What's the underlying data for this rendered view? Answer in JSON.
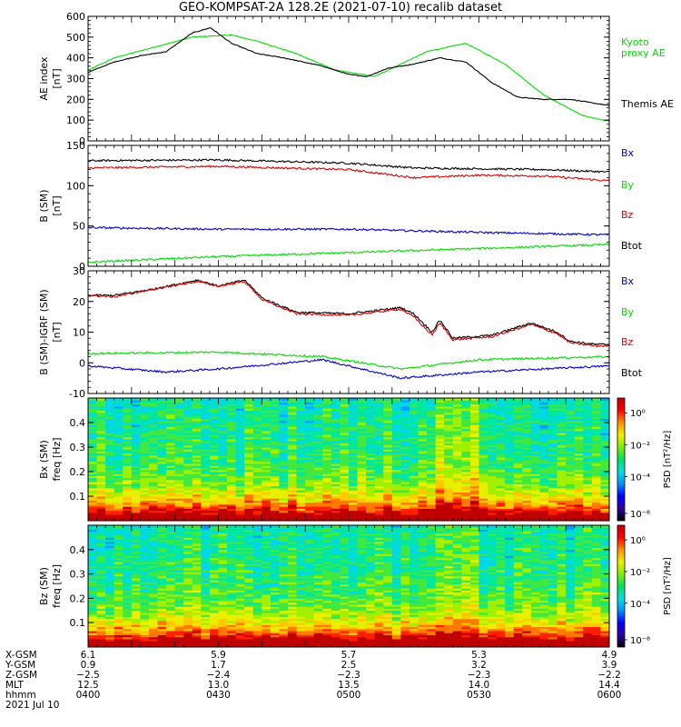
{
  "title": "GEO-KOMPSAT-2A 128.2E (2021-07-10) recalib dataset",
  "colors": {
    "black": "#000000",
    "red": "#dd0000",
    "green": "#00dd00",
    "blue": "#0000cc"
  },
  "chart_data": [
    {
      "type": "line",
      "name": "ae-index",
      "ylabel": [
        "AE index",
        "[nT]"
      ],
      "ylim": [
        0,
        600
      ],
      "yticks": [
        0,
        100,
        200,
        300,
        400,
        500,
        600
      ],
      "xlim": [
        4.0,
        6.0
      ],
      "legend": [
        {
          "text": "Kyoto",
          "color": "green"
        },
        {
          "text": "proxy AE",
          "color": "green"
        },
        {
          "text": "Themis AE",
          "color": "black"
        }
      ],
      "series": [
        {
          "color": "green",
          "x": [
            4.0,
            4.1,
            4.25,
            4.4,
            4.55,
            4.65,
            4.8,
            4.95,
            5.1,
            5.3,
            5.45,
            5.6,
            5.75,
            5.9,
            6.0
          ],
          "y": [
            340,
            400,
            450,
            500,
            510,
            480,
            420,
            340,
            310,
            430,
            470,
            370,
            220,
            120,
            95
          ]
        },
        {
          "color": "black",
          "x": [
            4.0,
            4.1,
            4.2,
            4.3,
            4.4,
            4.47,
            4.55,
            4.65,
            4.75,
            4.9,
            5.0,
            5.07,
            5.15,
            5.25,
            5.35,
            5.45,
            5.55,
            5.65,
            5.75,
            5.85,
            6.0
          ],
          "y": [
            330,
            380,
            410,
            430,
            520,
            545,
            470,
            420,
            400,
            360,
            320,
            310,
            350,
            370,
            400,
            380,
            280,
            210,
            200,
            200,
            170
          ]
        }
      ]
    },
    {
      "type": "line",
      "name": "b-sm",
      "ylabel": [
        "B  (SM)",
        "[nT]"
      ],
      "ylim": [
        0,
        150
      ],
      "yticks": [
        0,
        50,
        100,
        150
      ],
      "xlim": [
        4.0,
        6.0
      ],
      "legend": [
        {
          "text": "Bx",
          "color": "blue"
        },
        {
          "text": "By",
          "color": "green"
        },
        {
          "text": "Bz",
          "color": "red"
        },
        {
          "text": "Btot",
          "color": "black"
        }
      ],
      "series": [
        {
          "color": "black",
          "x": [
            4.0,
            4.5,
            5.0,
            5.25,
            5.5,
            5.75,
            6.0
          ],
          "y": [
            131,
            132,
            128,
            122,
            121,
            120,
            117
          ]
        },
        {
          "color": "red",
          "x": [
            4.0,
            4.5,
            5.0,
            5.25,
            5.5,
            5.75,
            6.0
          ],
          "y": [
            122,
            124,
            120,
            110,
            113,
            112,
            106
          ]
        },
        {
          "color": "blue",
          "x": [
            4.0,
            4.5,
            5.0,
            5.5,
            6.0
          ],
          "y": [
            48,
            46,
            46,
            42,
            39
          ]
        },
        {
          "color": "green",
          "x": [
            4.0,
            4.5,
            5.0,
            5.5,
            6.0
          ],
          "y": [
            5,
            12,
            17,
            22,
            27
          ]
        }
      ]
    },
    {
      "type": "line",
      "name": "b-minus-igrf",
      "ylabel": [
        "B (SM)-IGRF (SM)",
        "[nT]"
      ],
      "ylim": [
        -10,
        30
      ],
      "yticks": [
        -10,
        0,
        10,
        20,
        30
      ],
      "xlim": [
        4.0,
        6.0
      ],
      "legend": [
        {
          "text": "Bx",
          "color": "blue"
        },
        {
          "text": "By",
          "color": "green"
        },
        {
          "text": "Bz",
          "color": "red"
        },
        {
          "text": "Btot",
          "color": "black"
        }
      ],
      "series": [
        {
          "color": "black",
          "x": [
            4.0,
            4.1,
            4.25,
            4.42,
            4.5,
            4.6,
            4.67,
            4.8,
            5.0,
            5.2,
            5.25,
            5.32,
            5.35,
            5.4,
            5.55,
            5.7,
            5.8,
            5.85,
            5.95,
            6.0
          ],
          "y": [
            22,
            22,
            24,
            27,
            25,
            27,
            21,
            16.5,
            16,
            18,
            16,
            10,
            14,
            8,
            9,
            13,
            10,
            7,
            6,
            6
          ]
        },
        {
          "color": "red",
          "x": [
            4.0,
            4.1,
            4.25,
            4.42,
            4.5,
            4.6,
            4.67,
            4.8,
            5.0,
            5.2,
            5.25,
            5.32,
            5.35,
            5.4,
            5.55,
            5.7,
            5.8,
            5.85,
            5.95,
            6.0
          ],
          "y": [
            22,
            21.5,
            24,
            26.5,
            25,
            26.5,
            20.5,
            16,
            15.5,
            17.5,
            15,
            9,
            13,
            7.5,
            8.5,
            12.5,
            9.5,
            6.5,
            5.5,
            5.5
          ]
        },
        {
          "color": "green",
          "x": [
            4.0,
            4.5,
            4.9,
            5.2,
            5.5,
            6.0
          ],
          "y": [
            3,
            3.5,
            2,
            -2,
            1,
            2
          ]
        },
        {
          "color": "blue",
          "x": [
            4.0,
            4.3,
            4.5,
            4.9,
            5.2,
            5.5,
            6.0
          ],
          "y": [
            -1,
            -3,
            -2,
            1,
            -5,
            -3,
            -1
          ]
        }
      ]
    },
    {
      "type": "heatmap",
      "name": "bx-spectrogram",
      "ylabel": [
        "Bx (SM)",
        "freq [Hz]"
      ],
      "ylim": [
        0,
        0.5
      ],
      "yticks": [
        0.1,
        0.2,
        0.3,
        0.4
      ],
      "yticklabels": [
        "0.1",
        "0.2",
        "0.3",
        "0.4"
      ],
      "colorbar_label": "PSD [nT²/Hz]",
      "colorbar_ticks": [
        {
          "text": "10⁰",
          "pos": 0.88
        },
        {
          "text": "10⁻²",
          "pos": 0.62
        },
        {
          "text": "10⁻⁴",
          "pos": 0.36
        },
        {
          "text": "10⁻⁸",
          "pos": 0.06
        }
      ]
    },
    {
      "type": "heatmap",
      "name": "bz-spectrogram",
      "ylabel": [
        "Bz (SM)",
        "freq [Hz]"
      ],
      "ylim": [
        0,
        0.5
      ],
      "yticks": [
        0.1,
        0.2,
        0.3,
        0.4
      ],
      "yticklabels": [
        "0.1",
        "0.2",
        "0.3",
        "0.4"
      ],
      "colorbar_label": "PSD [nT²/Hz]",
      "colorbar_ticks": [
        {
          "text": "10⁰",
          "pos": 0.88
        },
        {
          "text": "10⁻²",
          "pos": 0.62
        },
        {
          "text": "10⁻⁴",
          "pos": 0.36
        },
        {
          "text": "10⁻⁸",
          "pos": 0.06
        }
      ]
    }
  ],
  "ephemeris": {
    "labels": [
      "X-GSM",
      "Y-GSM",
      "Z-GSM",
      "MLT",
      "hhmm",
      "2021 Jul 10"
    ],
    "columns": [
      {
        "t": 4.0,
        "values": [
          "6.1",
          "0.9",
          "−2.5",
          "12.5",
          "0400"
        ]
      },
      {
        "t": 4.5,
        "values": [
          "5.9",
          "1.7",
          "−2.4",
          "13.0",
          "0430"
        ]
      },
      {
        "t": 5.0,
        "values": [
          "5.7",
          "2.5",
          "−2.3",
          "13.5",
          "0500"
        ]
      },
      {
        "t": 5.5,
        "values": [
          "5.3",
          "3.2",
          "−2.3",
          "14.0",
          "0530"
        ]
      },
      {
        "t": 6.0,
        "values": [
          "4.9",
          "3.9",
          "−2.2",
          "14.4",
          "0600"
        ]
      }
    ]
  }
}
